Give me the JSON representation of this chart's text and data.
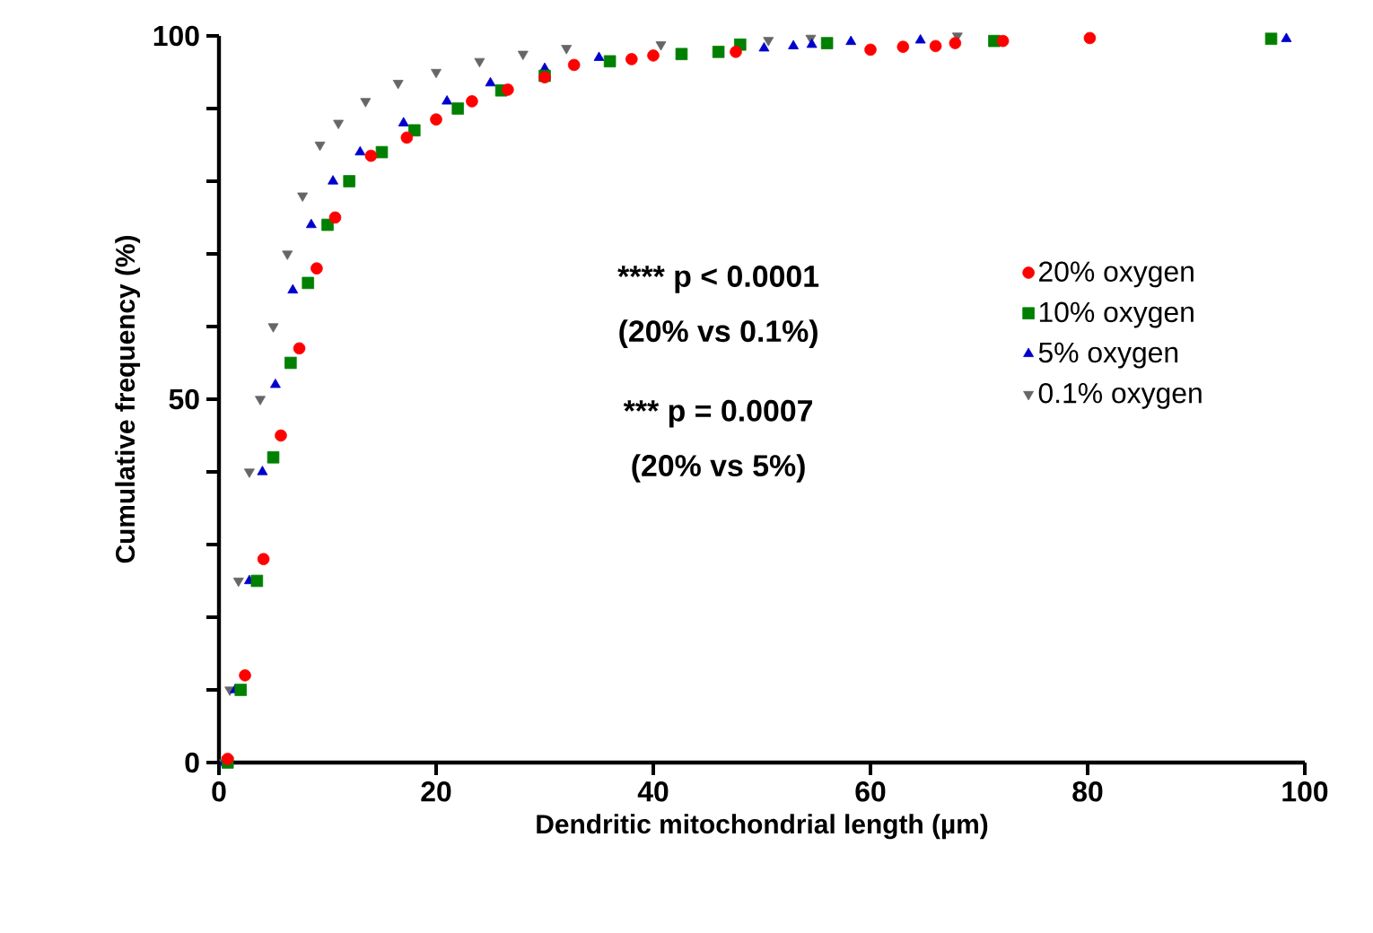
{
  "chart_data": {
    "type": "scatter",
    "xlabel": "Dendritic mitochondrial length (µm)",
    "ylabel": "Cumulative frequency (%)",
    "xlim": [
      0,
      100
    ],
    "xticks": [
      0,
      20,
      40,
      60,
      80,
      100
    ],
    "ylim": [
      0,
      100
    ],
    "yticks": [
      0,
      {
        "value": 10,
        "label": null
      },
      {
        "value": 20,
        "label": null
      },
      {
        "value": 30,
        "label": null
      },
      {
        "value": 40,
        "label": null
      },
      50,
      {
        "value": 60,
        "label": null
      },
      {
        "value": 70,
        "label": null
      },
      {
        "value": 80,
        "label": null
      },
      {
        "value": 90,
        "label": null
      },
      100
    ],
    "legend": "right",
    "annotations": [
      "**** p < 0.0001",
      "(20% vs 0.1%)",
      "*** p = 0.0007",
      "(20% vs 5%)"
    ],
    "series": [
      {
        "name": "20% oxygen",
        "color": "#ff0000",
        "marker": "circle",
        "x": [
          0.8,
          2.4,
          4.1,
          5.7,
          7.4,
          9.0,
          10.7,
          14,
          17.3,
          20,
          23.3,
          26.6,
          30,
          32.7,
          38,
          40,
          47.6,
          60,
          63,
          66,
          67.8,
          72.2,
          80.2
        ],
        "values": [
          0.5,
          12,
          28,
          45,
          57,
          68,
          75,
          83.5,
          86,
          88.5,
          91,
          92.6,
          94.3,
          96,
          96.8,
          97.3,
          97.8,
          98.1,
          98.5,
          98.6,
          99,
          99.3,
          99.7
        ]
      },
      {
        "name": "10% oxygen",
        "color": "#008000",
        "marker": "square",
        "x": [
          0.8,
          2,
          3.5,
          5,
          6.6,
          8.2,
          10,
          12,
          15,
          18,
          22,
          26,
          30,
          36,
          42.6,
          46,
          48,
          56,
          71.4,
          96.9
        ],
        "values": [
          0,
          10,
          25,
          42,
          55,
          66,
          74,
          80,
          84,
          87,
          90,
          92.5,
          94.5,
          96.5,
          97.5,
          97.8,
          98.8,
          99,
          99.3,
          99.6
        ]
      },
      {
        "name": "5% oxygen",
        "color": "#0000cc",
        "marker": "triangle",
        "x": [
          0.5,
          1.5,
          2.8,
          4,
          5.2,
          6.8,
          8.5,
          10.5,
          13,
          17,
          21,
          25,
          30,
          35,
          50.2,
          52.9,
          54.6,
          58.2,
          64.6,
          98.3
        ],
        "values": [
          0,
          10,
          25,
          40,
          52,
          65,
          74,
          80,
          84,
          88,
          91,
          93.5,
          95.5,
          97,
          98.3,
          98.6,
          98.8,
          99.2,
          99.4,
          99.6
        ]
      },
      {
        "name": "0.1% oxygen",
        "color": "#666666",
        "marker": "triangle-down",
        "x": [
          0.5,
          1,
          1.8,
          2.8,
          3.8,
          5,
          6.3,
          7.7,
          9.3,
          11,
          13.5,
          16.5,
          20,
          24,
          28,
          32,
          40.7,
          50.6,
          54.5,
          68
        ],
        "values": [
          0,
          10,
          25,
          40,
          50,
          60,
          70,
          78,
          85,
          88,
          91,
          93.5,
          95,
          96.5,
          97.5,
          98.3,
          98.8,
          99.4,
          99.7,
          100
        ]
      }
    ]
  }
}
